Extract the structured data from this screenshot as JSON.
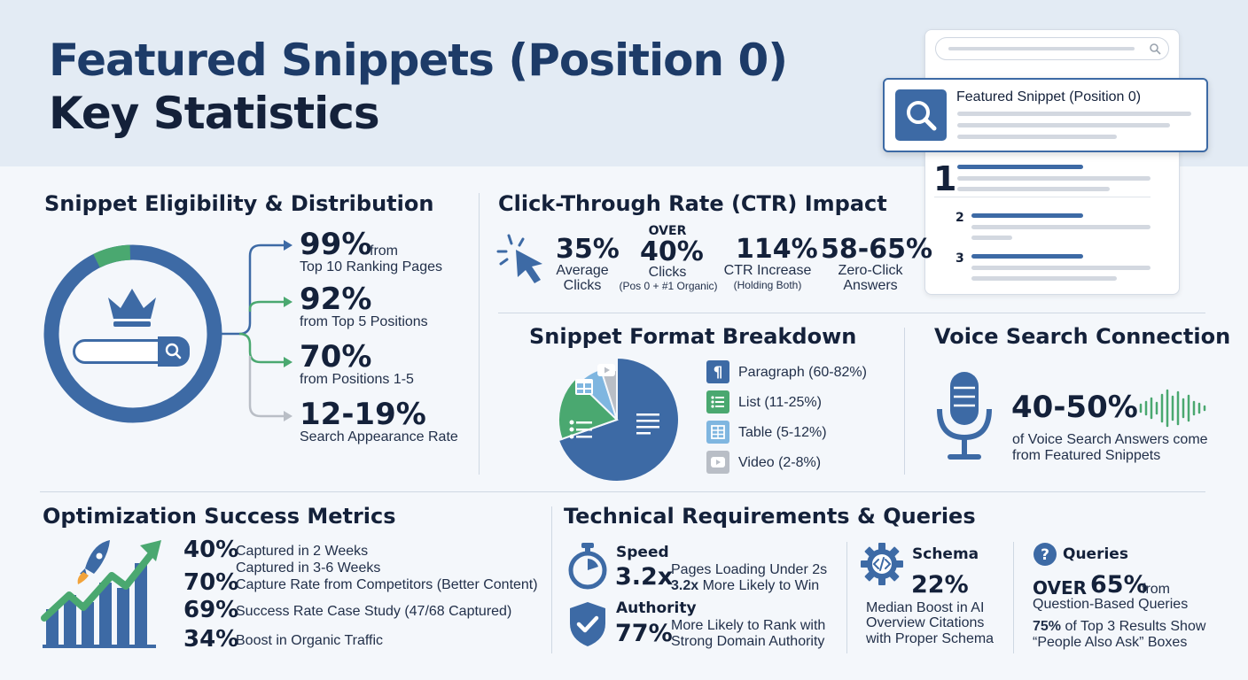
{
  "title": {
    "line1": "Featured Snippets (Position 0)",
    "line2": "Key Statistics"
  },
  "serp": {
    "snippet_label": "Featured Snippet (Position 0)",
    "ranks": [
      "1",
      "2",
      "3"
    ]
  },
  "eligibility": {
    "heading": "Snippet Eligibility & Distribution",
    "items": [
      {
        "value": "99%",
        "suffix": "from",
        "desc": "Top 10 Ranking Pages",
        "color": "#3d6aa5"
      },
      {
        "value": "92%",
        "suffix": "",
        "desc": "from Top 5 Positions",
        "color": "#4aa870"
      },
      {
        "value": "70%",
        "suffix": "",
        "desc": "from Positions 1-5",
        "color": "#4aa870"
      },
      {
        "value": "12-19%",
        "suffix": "",
        "desc": "Search Appearance Rate",
        "color": "#b9bec6"
      }
    ]
  },
  "ctr": {
    "heading": "Click-Through Rate (CTR) Impact",
    "stats": [
      {
        "pre": "",
        "value": "35%",
        "label": "Average",
        "label2": "Clicks"
      },
      {
        "pre": "OVER",
        "value": "40%",
        "label": "Clicks",
        "label2": "(Pos 0 + #1 Organic)"
      },
      {
        "pre": "",
        "value": "114%",
        "label": "CTR Increase",
        "label2": "(Holding Both)"
      },
      {
        "pre": "",
        "value": "58-65%",
        "label": "Zero-Click",
        "label2": "Answers"
      }
    ]
  },
  "format": {
    "heading": "Snippet Format Breakdown",
    "legend": [
      {
        "label": "Paragraph (60-82%)",
        "icon": "paragraph-icon",
        "color": "#3d6aa5"
      },
      {
        "label": "List (11-25%)",
        "icon": "list-icon",
        "color": "#4aa870"
      },
      {
        "label": "Table (5-12%)",
        "icon": "table-icon",
        "color": "#7fb6e0"
      },
      {
        "label": "Video (2-8%)",
        "icon": "video-icon",
        "color": "#b9bec6"
      }
    ]
  },
  "chart_data": {
    "type": "pie",
    "categories": [
      "Paragraph",
      "List",
      "Table",
      "Video"
    ],
    "values": [
      71,
      18,
      8,
      5
    ],
    "colors": [
      "#3d6aa5",
      "#4aa870",
      "#7fb6e0",
      "#b9bec6"
    ]
  },
  "voice": {
    "heading": "Voice Search Connection",
    "value": "40-50%",
    "desc1": "of Voice Search Answers come",
    "desc2": "from Featured Snippets"
  },
  "optimization": {
    "heading": "Optimization Success Metrics",
    "rows": [
      {
        "value": "40%",
        "text": "Captured in 2 Weeks"
      },
      {
        "value": "",
        "text": "Captured in 3-6 Weeks"
      },
      {
        "value": "70%",
        "text": "Capture Rate from Competitors (Better Content)"
      },
      {
        "value": "69%",
        "text": "Success Rate Case Study (47/68 Captured)"
      },
      {
        "value": "34%",
        "text": "Boost in Organic Traffic"
      }
    ]
  },
  "technical": {
    "heading": "Technical Requirements & Queries",
    "speed": {
      "title": "Speed",
      "value": "3.2x",
      "line1": "Pages Loading Under 2s",
      "line2_bold": "3.2x",
      "line2": "More Likely to Win"
    },
    "authority": {
      "title": "Authority",
      "value": "77%",
      "line1": "More Likely to Rank with",
      "line2": "Strong Domain Authority"
    },
    "schema": {
      "title": "Schema",
      "value": "22%",
      "line1": "Median Boost in AI",
      "line2": "Overview Citations",
      "line3": "with Proper Schema"
    },
    "queries": {
      "title": "Queries",
      "pre": "OVER",
      "value": "65%",
      "suffix": "from",
      "line1": "Question-Based Queries",
      "line2_bold": "75%",
      "line2": "of Top 3 Results Show",
      "line3": "“People Also Ask” Boxes"
    }
  }
}
